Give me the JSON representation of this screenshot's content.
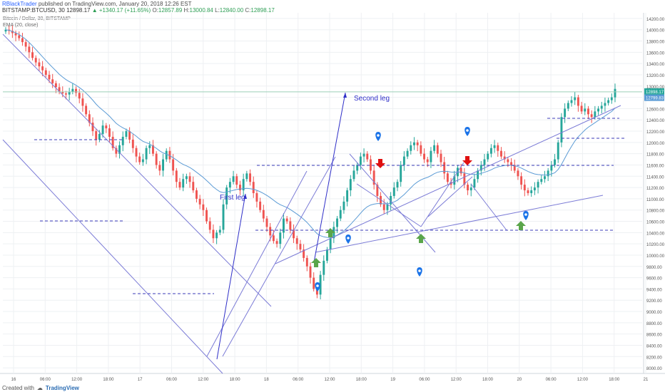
{
  "header": {
    "author": "RBlackTrader",
    "published": "published on TradingView.com, January 20, 2018 12:26 EST"
  },
  "ohlc_line": {
    "symbol": "BITSTAMP:BTCUSD, 30",
    "price": "12898.17",
    "change": "▲ +1340.17 (+11.65%)",
    "o_label": "O:",
    "o": "12857.89",
    "h_label": "H:",
    "h": "13000.84",
    "l_label": "L:",
    "l": "12840.00",
    "c_label": "C:",
    "c": "12898.17"
  },
  "legend": {
    "series": "Bitcoin / Dollar, 30, BITSTAMP",
    "indicator": "EMA (20, close)"
  },
  "footer": {
    "created_with": "Created with",
    "brand": "TradingView"
  },
  "colors": {
    "up": "#26a69a",
    "down": "#ef5350",
    "ema": "#5b9bd5",
    "trend": "#7b7bd6",
    "dashed": "#3b3bb8",
    "annot": "#3030c8",
    "green_arrow": "#5aa54a",
    "red_arrow": "#e01010",
    "marker": "#1a73e8",
    "grid": "#eef0f3"
  },
  "chart_data": {
    "type": "candlestick",
    "ylim": [
      7900,
      14300
    ],
    "y_ticks": [
      "14200.00",
      "14000.00",
      "13800.00",
      "13600.00",
      "13400.00",
      "13200.00",
      "13000.00",
      "12800.00",
      "12600.00",
      "12400.00",
      "12200.00",
      "12000.00",
      "11800.00",
      "11600.00",
      "11400.00",
      "11200.00",
      "11000.00",
      "10800.00",
      "10600.00",
      "10400.00",
      "10200.00",
      "10000.00",
      "9800.00",
      "9600.00",
      "9400.00",
      "9200.00",
      "9000.00",
      "8800.00",
      "8600.00",
      "8400.00",
      "8200.00",
      "8000.00"
    ],
    "x_ticks": [
      "16",
      "06:00",
      "12:00",
      "18:00",
      "17",
      "06:00",
      "12:00",
      "18:00",
      "18",
      "06:00",
      "12:00",
      "18:00",
      "19",
      "06:00",
      "12:00",
      "18:00",
      "20",
      "06:00",
      "12:00",
      "18:00",
      "21"
    ],
    "last_price": "12898.17",
    "last_price_tag": "12799.83",
    "closes": [
      14000,
      13980,
      13940,
      13900,
      13850,
      13780,
      13700,
      13600,
      13500,
      13420,
      13350,
      13280,
      13200,
      13120,
      13050,
      12980,
      12900,
      12870,
      12850,
      12900,
      12950,
      12880,
      12780,
      12650,
      12500,
      12350,
      12200,
      12050,
      12150,
      12300,
      12250,
      12100,
      11900,
      11800,
      11950,
      12100,
      12200,
      12050,
      11900,
      11750,
      11650,
      11700,
      11900,
      11950,
      11800,
      11600,
      11500,
      11700,
      11850,
      11700,
      11500,
      11300,
      11200,
      11350,
      11400,
      11300,
      11150,
      11000,
      10900,
      10800,
      10600,
      10450,
      10300,
      10400,
      10450,
      10900,
      11200,
      11300,
      11400,
      11250,
      11150,
      11350,
      11450,
      11300,
      11100,
      10950,
      10800,
      10650,
      10500,
      10350,
      10250,
      10200,
      10400,
      10650,
      10600,
      10450,
      10300,
      10200,
      10100,
      9950,
      9800,
      9600,
      9400,
      9300,
      9650,
      9900,
      10100,
      10300,
      10500,
      10650,
      10800,
      10950,
      11150,
      11350,
      11500,
      11600,
      11750,
      11800,
      11700,
      11500,
      11250,
      11050,
      10900,
      10800,
      10900,
      11050,
      11200,
      11300,
      11600,
      11750,
      11850,
      11950,
      12000,
      11950,
      11800,
      11700,
      11650,
      11850,
      11950,
      11800,
      11650,
      11450,
      11300,
      11250,
      11400,
      11550,
      11450,
      11250,
      11150,
      11200,
      11350,
      11500,
      11600,
      11700,
      11800,
      11900,
      11950,
      11850,
      11750,
      11700,
      11650,
      11600,
      11500,
      11400,
      11250,
      11150,
      11100,
      11150,
      11200,
      11300,
      11350,
      11400,
      11500,
      11600,
      11700,
      12000,
      12450,
      12600,
      12700,
      12750,
      12800,
      12650,
      12550,
      12600,
      12500,
      12450,
      12550,
      12600,
      12650,
      12700,
      12750,
      12800,
      12950
    ],
    "ema20": [
      14000,
      13990,
      13970,
      13945,
      13915,
      13875,
      13830,
      13775,
      13715,
      13650,
      13585,
      13520,
      13455,
      13390,
      13330,
      13270,
      13210,
      13160,
      13115,
      13080,
      13050,
      13015,
      12975,
      12930,
      12875,
      12815,
      12750,
      12680,
      12620,
      12570,
      12520,
      12465,
      12400,
      12340,
      12295,
      12260,
      12230,
      12195,
      12155,
      12110,
      12060,
      12020,
      11995,
      11970,
      11935,
      11895,
      11850,
      11815,
      11790,
      11765,
      11730,
      11690,
      11645,
      11610,
      11585,
      11555,
      11515,
      11470,
      11425,
      11380,
      11325,
      11270,
      11210,
      11165,
      11125,
      11110,
      11120,
      11135,
      11150,
      11165,
      11175,
      11180,
      11185,
      11180,
      11170,
      11150,
      11125,
      11095,
      11060,
      11020,
      10975,
      10930,
      10895,
      10870,
      10845,
      10810,
      10770,
      10730,
      10685,
      10635,
      10580,
      10515,
      10445,
      10380,
      10345,
      10325,
      10315,
      10315,
      10330,
      10355,
      10390,
      10430,
      10485,
      10545,
      10610,
      10675,
      10745,
      10810,
      10860,
      10890,
      10905,
      10915,
      10915,
      10910,
      10910,
      10925,
      10945,
      10975,
      11025,
      11075,
      11135,
      11195,
      11255,
      11300,
      11335,
      11360,
      11380,
      11410,
      11445,
      11470,
      11485,
      11490,
      11485,
      11475,
      11470,
      11475,
      11475,
      11460,
      11445,
      11435,
      11430,
      11435,
      11450,
      11470,
      11490,
      11515,
      11545,
      11565,
      11580,
      11590,
      11595,
      11595,
      11585,
      11570,
      11545,
      11515,
      11485,
      11460,
      11440,
      11430,
      11425,
      11420,
      11425,
      11440,
      11460,
      11520,
      11610,
      11720,
      11830,
      11930,
      12025,
      12100,
      12160,
      12220,
      12270,
      12310,
      12350,
      12390,
      12430,
      12470,
      12510,
      12550,
      12610
    ]
  },
  "annotations": {
    "first_leg": "First leg",
    "second_leg": "Second leg"
  }
}
